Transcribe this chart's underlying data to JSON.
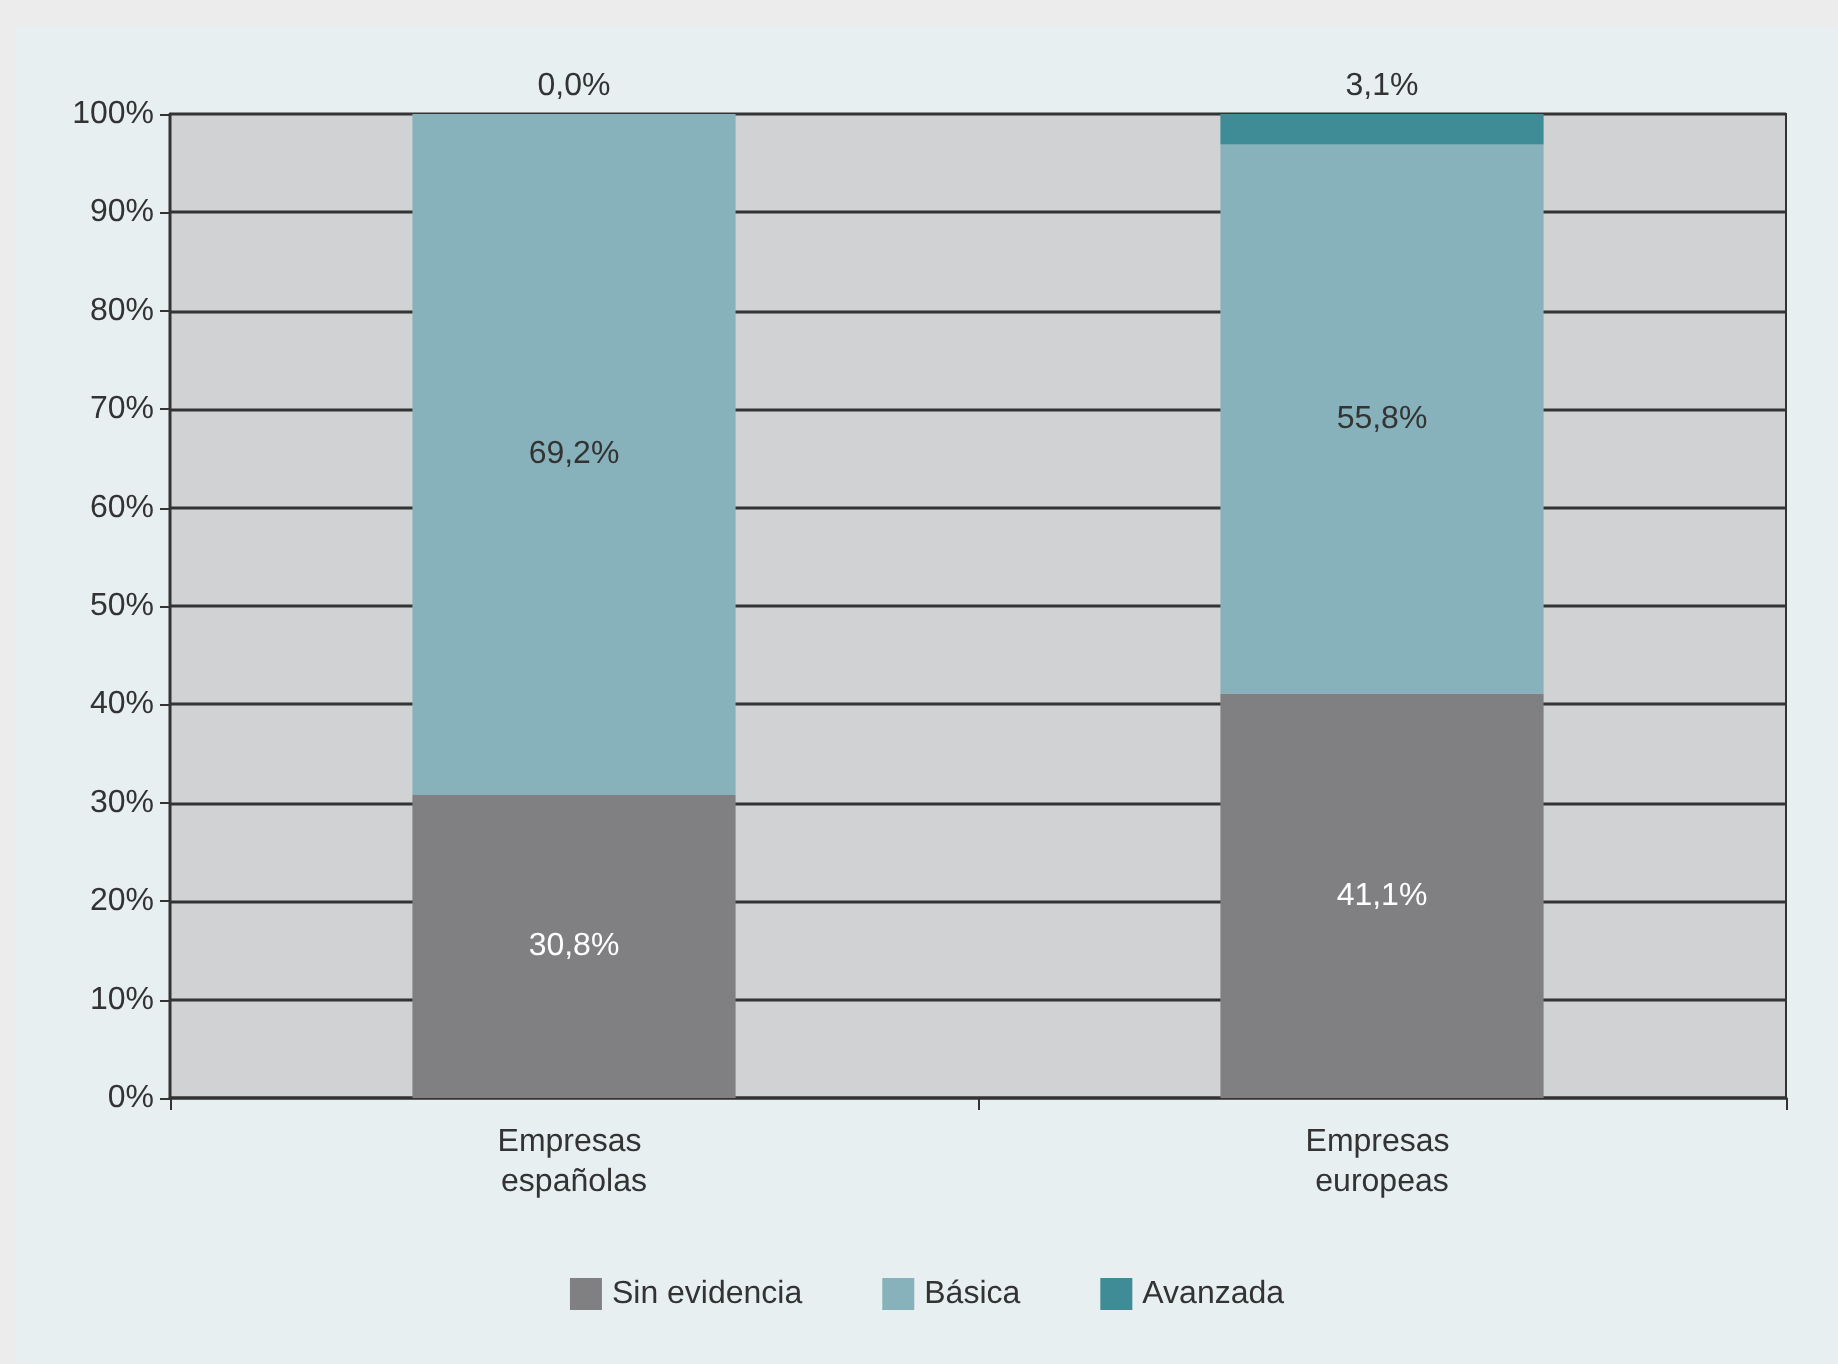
{
  "chart_data": {
    "type": "bar",
    "stacked": true,
    "categories": [
      "Empresas españolas",
      "Empresas europeas"
    ],
    "series": [
      {
        "name": "Sin evidencia",
        "color": "#808083",
        "values": [
          30.8,
          41.1
        ],
        "value_labels": [
          "30,8%",
          "41,1%"
        ]
      },
      {
        "name": "Básica",
        "color": "#88b2bb",
        "values": [
          69.2,
          55.8
        ],
        "value_labels": [
          "69,2%",
          "55,8%"
        ]
      },
      {
        "name": "Avanzada",
        "color": "#3f8c96",
        "values": [
          0.0,
          3.1
        ],
        "value_labels": [
          "0,0%",
          "3,1%"
        ]
      }
    ],
    "ylim": [
      0,
      100
    ],
    "yticks": [
      {
        "value": 0,
        "label": "0%"
      },
      {
        "value": 10,
        "label": "10%"
      },
      {
        "value": 20,
        "label": "20%"
      },
      {
        "value": 30,
        "label": "30%"
      },
      {
        "value": 40,
        "label": "40%"
      },
      {
        "value": 50,
        "label": "50%"
      },
      {
        "value": 60,
        "label": "60%"
      },
      {
        "value": 70,
        "label": "70%"
      },
      {
        "value": 80,
        "label": "80%"
      },
      {
        "value": 90,
        "label": "90%"
      },
      {
        "value": 100,
        "label": "100%"
      }
    ],
    "grid": "y",
    "legend": "bottom"
  }
}
